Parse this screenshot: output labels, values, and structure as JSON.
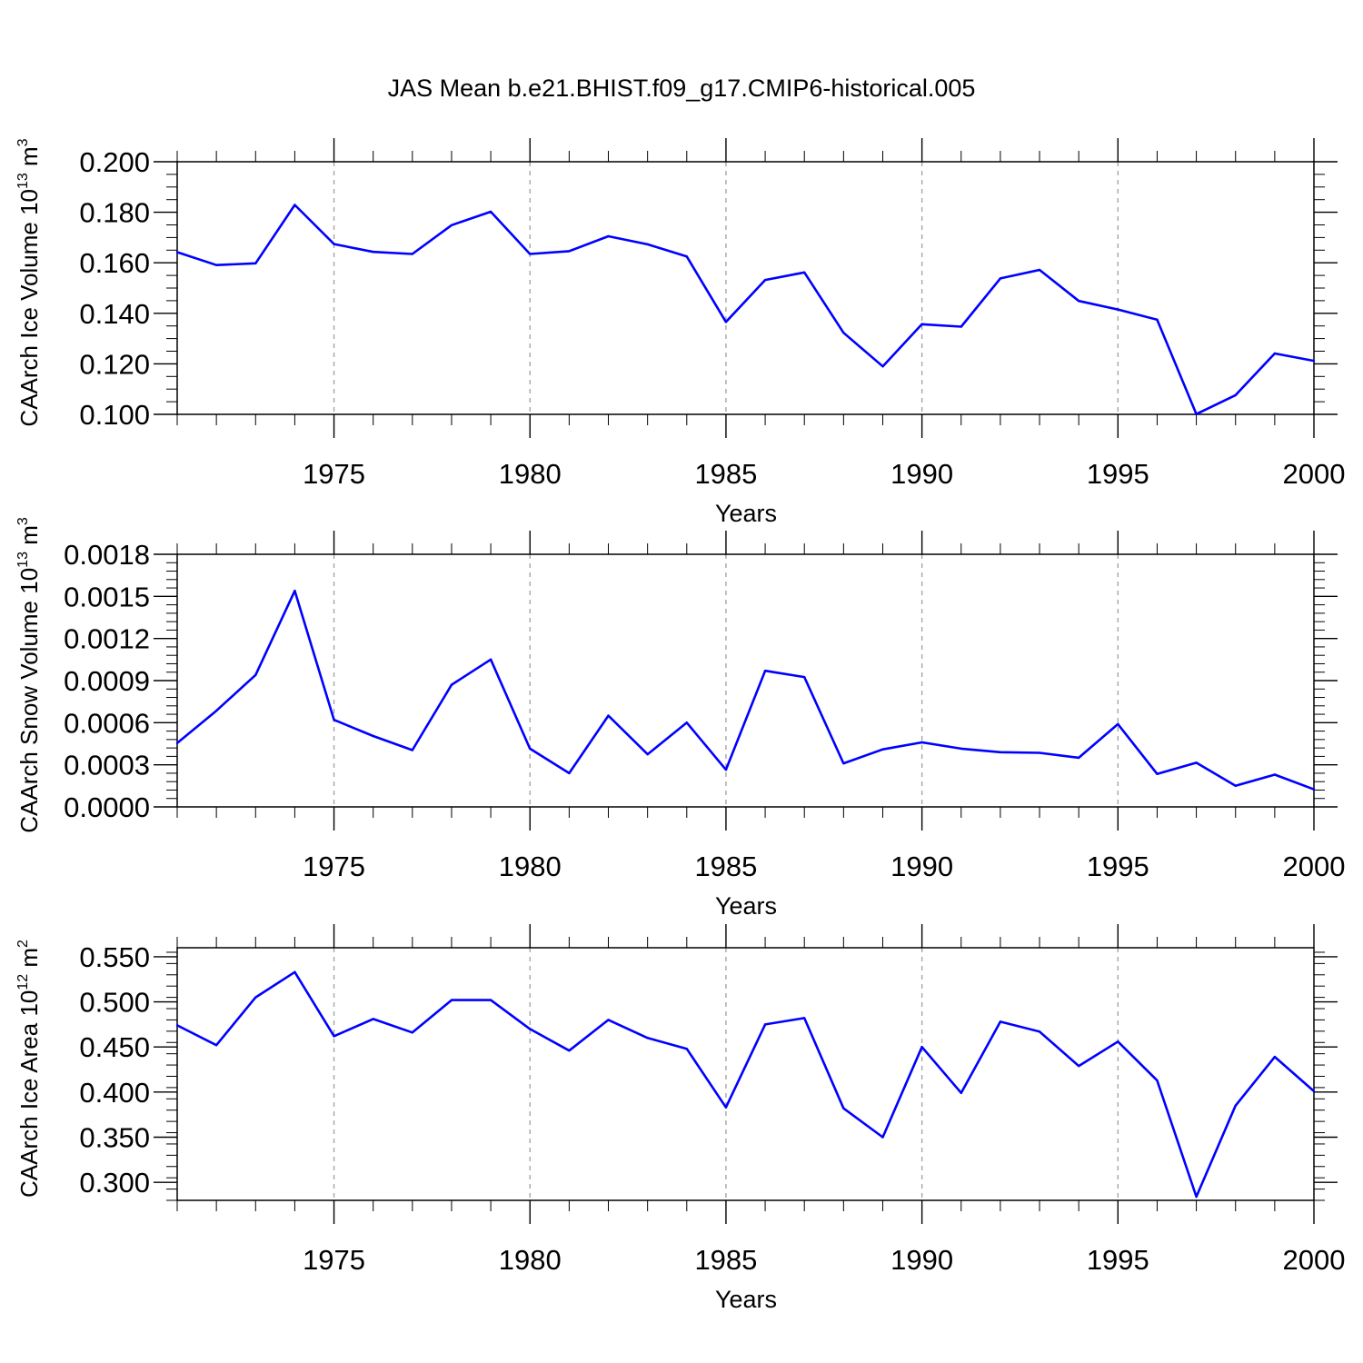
{
  "figure_title": "JAS Mean b.e21.BHIST.f09_g17.CMIP6-historical.005",
  "colors": {
    "line": "#0000ff",
    "frame": "#000000",
    "grid": "#a0a0a0"
  },
  "chart_data": [
    {
      "type": "line",
      "title": "",
      "xlabel": "Years",
      "ylabel": {
        "text": "CAArch Ice Volume 10",
        "exp": "13",
        "unit": " m",
        "unit_exp": "3"
      },
      "xlim": [
        1971,
        2000
      ],
      "ylim": [
        0.1,
        0.2
      ],
      "x_ticks": [
        "1975",
        "1980",
        "1985",
        "1990",
        "1995",
        "2000"
      ],
      "y_ticks": [
        "0.100",
        "0.120",
        "0.140",
        "0.160",
        "0.180",
        "0.200"
      ],
      "grid": "vertical dashed at major x ticks",
      "x": [
        1971,
        1972,
        1973,
        1974,
        1975,
        1976,
        1977,
        1978,
        1979,
        1980,
        1981,
        1982,
        1983,
        1984,
        1985,
        1986,
        1987,
        1988,
        1989,
        1990,
        1991,
        1992,
        1993,
        1994,
        1995,
        1996,
        1997,
        1998,
        1999,
        2000
      ],
      "values": [
        0.1642,
        0.1591,
        0.1598,
        0.1829,
        0.1674,
        0.1643,
        0.1635,
        0.1749,
        0.1802,
        0.1635,
        0.1646,
        0.1705,
        0.1673,
        0.1625,
        0.1366,
        0.1532,
        0.1562,
        0.1323,
        0.119,
        0.1357,
        0.1347,
        0.1538,
        0.1572,
        0.1449,
        0.1415,
        0.1375,
        0.1001,
        0.1076,
        0.1241,
        0.1212
      ]
    },
    {
      "type": "line",
      "title": "",
      "xlabel": "Years",
      "ylabel": {
        "text": "CAArch Snow Volume 10",
        "exp": "13",
        "unit": " m",
        "unit_exp": "3"
      },
      "xlim": [
        1971,
        2000
      ],
      "ylim": [
        0.0,
        0.0018
      ],
      "x_ticks": [
        "1975",
        "1980",
        "1985",
        "1990",
        "1995",
        "2000"
      ],
      "y_ticks": [
        "0.0000",
        "0.0003",
        "0.0006",
        "0.0009",
        "0.0012",
        "0.0015",
        "0.0018"
      ],
      "grid": "vertical dashed at major x ticks",
      "x": [
        1971,
        1972,
        1973,
        1974,
        1975,
        1976,
        1977,
        1978,
        1979,
        1980,
        1981,
        1982,
        1983,
        1984,
        1985,
        1986,
        1987,
        1988,
        1989,
        1990,
        1991,
        1992,
        1993,
        1994,
        1995,
        1996,
        1997,
        1998,
        1999,
        2000
      ],
      "values": [
        0.000455,
        0.000685,
        0.00094,
        0.00154,
        0.00062,
        0.000505,
        0.000405,
        0.00087,
        0.00105,
        0.000415,
        0.00024,
        0.00065,
        0.000375,
        0.0006,
        0.000265,
        0.00097,
        0.000925,
        0.00031,
        0.00041,
        0.00046,
        0.000415,
        0.00039,
        0.000385,
        0.00035,
        0.00059,
        0.000235,
        0.000315,
        0.00015,
        0.00023,
        0.000125
      ]
    },
    {
      "type": "line",
      "title": "",
      "xlabel": "Years",
      "ylabel": {
        "text": "CAArch Ice Area 10",
        "exp": "12",
        "unit": " m",
        "unit_exp": "2"
      },
      "xlim": [
        1971,
        2000
      ],
      "ylim": [
        0.28,
        0.56
      ],
      "x_ticks": [
        "1975",
        "1980",
        "1985",
        "1990",
        "1995",
        "2000"
      ],
      "y_ticks": [
        "0.300",
        "0.350",
        "0.400",
        "0.450",
        "0.500",
        "0.550"
      ],
      "grid": "vertical dashed at major x ticks",
      "x": [
        1971,
        1972,
        1973,
        1974,
        1975,
        1976,
        1977,
        1978,
        1979,
        1980,
        1981,
        1982,
        1983,
        1984,
        1985,
        1986,
        1987,
        1988,
        1989,
        1990,
        1991,
        1992,
        1993,
        1994,
        1995,
        1996,
        1997,
        1998,
        1999,
        2000
      ],
      "values": [
        0.474,
        0.452,
        0.505,
        0.533,
        0.462,
        0.481,
        0.466,
        0.502,
        0.502,
        0.47,
        0.446,
        0.48,
        0.46,
        0.448,
        0.383,
        0.475,
        0.482,
        0.382,
        0.35,
        0.45,
        0.399,
        0.478,
        0.467,
        0.429,
        0.456,
        0.413,
        0.284,
        0.385,
        0.439,
        0.401
      ]
    }
  ]
}
